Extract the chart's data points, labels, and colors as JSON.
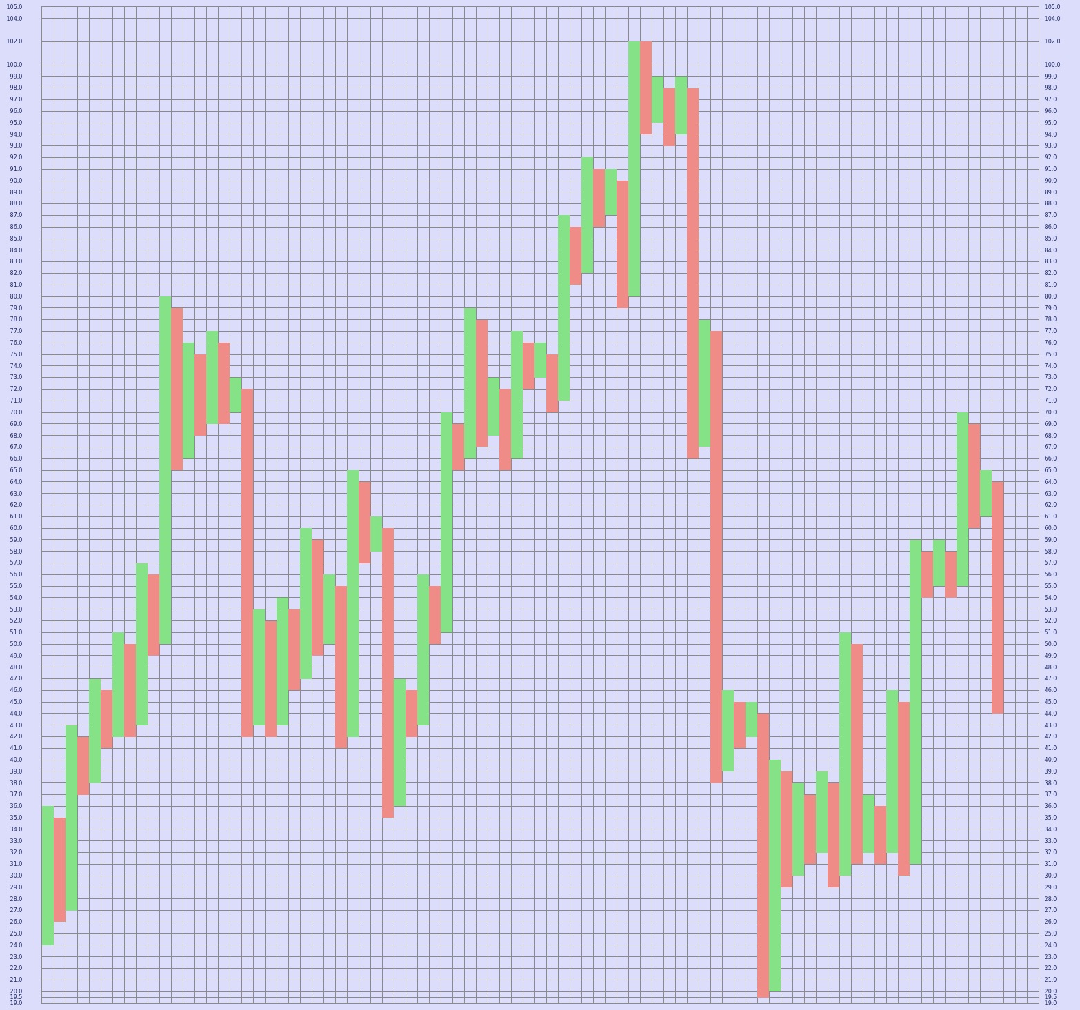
{
  "chart_data": {
    "type": "bar",
    "categories": [
      null,
      null,
      null,
      null,
      null,
      null,
      null,
      null,
      null,
      null,
      null,
      null,
      null,
      null,
      null,
      null,
      null,
      null,
      null,
      null,
      null,
      null,
      null,
      null,
      null,
      null,
      null,
      null,
      null,
      null,
      null,
      null,
      null,
      null,
      null,
      null,
      null,
      null,
      null,
      null,
      null,
      null,
      null,
      null,
      null,
      null,
      null,
      null,
      null,
      null,
      null,
      null,
      null,
      null,
      null,
      null,
      null,
      null,
      null,
      null,
      null,
      null,
      null,
      null,
      null,
      null,
      null,
      null,
      null,
      null,
      null,
      null,
      null,
      null,
      null,
      null,
      null,
      null,
      null,
      null,
      null,
      null,
      null,
      null,
      null
    ],
    "values": [
      12,
      9,
      16,
      5,
      9,
      5,
      9,
      8,
      14,
      7,
      30,
      14,
      10,
      7,
      8,
      7,
      3,
      30,
      10,
      10,
      11,
      7,
      13,
      10,
      6,
      14,
      23,
      7,
      3,
      25,
      11,
      4,
      13,
      5,
      19,
      4,
      13,
      11,
      5,
      7,
      11,
      4,
      3,
      5,
      16,
      5,
      10,
      5,
      4,
      11,
      22,
      8,
      4,
      5,
      5,
      32,
      11,
      39,
      7,
      4,
      3,
      24.5,
      20,
      10,
      8,
      6,
      7,
      9,
      21,
      19,
      5,
      5,
      14,
      15,
      28,
      4,
      4,
      4,
      15,
      9,
      4,
      20,
      null,
      null,
      null
    ],
    "base": [
      24,
      26,
      27,
      37,
      38,
      41,
      42,
      42,
      43,
      49,
      50,
      65,
      66,
      68,
      69,
      69,
      70,
      42,
      43,
      42,
      43,
      46,
      47,
      49,
      50,
      41,
      42,
      57,
      58,
      35,
      36,
      42,
      43,
      50,
      51,
      65,
      66,
      67,
      68,
      65,
      66,
      72,
      73,
      70,
      71,
      81,
      82,
      86,
      87,
      79,
      80,
      94,
      95,
      93,
      94,
      66,
      67,
      38,
      39,
      41,
      42,
      19.5,
      20,
      29,
      30,
      31,
      32,
      29,
      30,
      31,
      32,
      31,
      32,
      30,
      31,
      54,
      55,
      54,
      55,
      60,
      61,
      44,
      null,
      null,
      null
    ],
    "colors": [
      "#86e286",
      "#f08c88",
      "#86e286",
      "#f08c88",
      "#86e286",
      "#f08c88",
      "#86e286",
      "#f08c88",
      "#86e286",
      "#f08c88",
      "#86e286",
      "#f08c88",
      "#86e286",
      "#f08c88",
      "#86e286",
      "#f08c88",
      "#86e286",
      "#f08c88",
      "#86e286",
      "#f08c88",
      "#86e286",
      "#f08c88",
      "#86e286",
      "#f08c88",
      "#86e286",
      "#f08c88",
      "#86e286",
      "#f08c88",
      "#86e286",
      "#f08c88",
      "#86e286",
      "#f08c88",
      "#86e286",
      "#f08c88",
      "#86e286",
      "#f08c88",
      "#86e286",
      "#f08c88",
      "#86e286",
      "#f08c88",
      "#86e286",
      "#f08c88",
      "#86e286",
      "#f08c88",
      "#86e286",
      "#f08c88",
      "#86e286",
      "#f08c88",
      "#86e286",
      "#f08c88",
      "#86e286",
      "#f08c88",
      "#86e286",
      "#f08c88",
      "#86e286",
      "#f08c88",
      "#86e286",
      "#f08c88",
      "#86e286",
      "#f08c88",
      "#86e286",
      "#f08c88",
      "#86e286",
      "#f08c88",
      "#86e286",
      "#f08c88",
      "#86e286",
      "#f08c88",
      "#86e286",
      "#f08c88",
      "#86e286",
      "#f08c88",
      "#86e286",
      "#f08c88",
      "#86e286",
      "#f08c88",
      "#86e286",
      "#f08c88",
      "#86e286",
      "#f08c88",
      "#86e286",
      "#f08c88",
      null,
      null,
      null
    ],
    "ylim": [
      19,
      105
    ],
    "yticks": [
      {
        "value": 19,
        "label": "19.0"
      },
      19.5,
      {
        "value": 20,
        "label": "20.0"
      },
      {
        "value": 21,
        "label": "21.0"
      },
      {
        "value": 22,
        "label": "22.0"
      },
      {
        "value": 23,
        "label": "23.0"
      },
      {
        "value": 24,
        "label": "24.0"
      },
      {
        "value": 25,
        "label": "25.0"
      },
      {
        "value": 26,
        "label": "26.0"
      },
      {
        "value": 27,
        "label": "27.0"
      },
      {
        "value": 28,
        "label": "28.0"
      },
      {
        "value": 29,
        "label": "29.0"
      },
      {
        "value": 30,
        "label": "30.0"
      },
      {
        "value": 31,
        "label": "31.0"
      },
      {
        "value": 32,
        "label": "32.0"
      },
      {
        "value": 33,
        "label": "33.0"
      },
      {
        "value": 34,
        "label": "34.0"
      },
      {
        "value": 35,
        "label": "35.0"
      },
      {
        "value": 36,
        "label": "36.0"
      },
      {
        "value": 37,
        "label": "37.0"
      },
      {
        "value": 38,
        "label": "38.0"
      },
      {
        "value": 39,
        "label": "39.0"
      },
      {
        "value": 40,
        "label": "40.0"
      },
      {
        "value": 41,
        "label": "41.0"
      },
      {
        "value": 42,
        "label": "42.0"
      },
      {
        "value": 43,
        "label": "43.0"
      },
      {
        "value": 44,
        "label": "44.0"
      },
      {
        "value": 45,
        "label": "45.0"
      },
      {
        "value": 46,
        "label": "46.0"
      },
      {
        "value": 47,
        "label": "47.0"
      },
      {
        "value": 48,
        "label": "48.0"
      },
      {
        "value": 49,
        "label": "49.0"
      },
      {
        "value": 50,
        "label": "50.0"
      },
      {
        "value": 51,
        "label": "51.0"
      },
      {
        "value": 52,
        "label": "52.0"
      },
      {
        "value": 53,
        "label": "53.0"
      },
      {
        "value": 54,
        "label": "54.0"
      },
      {
        "value": 55,
        "label": "55.0"
      },
      {
        "value": 56,
        "label": "56.0"
      },
      {
        "value": 57,
        "label": "57.0"
      },
      {
        "value": 58,
        "label": "58.0"
      },
      {
        "value": 59,
        "label": "59.0"
      },
      {
        "value": 60,
        "label": "60.0"
      },
      {
        "value": 61,
        "label": "61.0"
      },
      {
        "value": 62,
        "label": "62.0"
      },
      {
        "value": 63,
        "label": "63.0"
      },
      {
        "value": 64,
        "label": "64.0"
      },
      {
        "value": 65,
        "label": "65.0"
      },
      {
        "value": 66,
        "label": "66.0"
      },
      {
        "value": 67,
        "label": "67.0"
      },
      {
        "value": 68,
        "label": "68.0"
      },
      {
        "value": 69,
        "label": "69.0"
      },
      {
        "value": 70,
        "label": "70.0"
      },
      {
        "value": 71,
        "label": "71.0"
      },
      {
        "value": 72,
        "label": "72.0"
      },
      {
        "value": 73,
        "label": "73.0"
      },
      {
        "value": 74,
        "label": "74.0"
      },
      {
        "value": 75,
        "label": "75.0"
      },
      {
        "value": 76,
        "label": "76.0"
      },
      {
        "value": 77,
        "label": "77.0"
      },
      {
        "value": 78,
        "label": "78.0"
      },
      {
        "value": 79,
        "label": "79.0"
      },
      {
        "value": 80,
        "label": "80.0"
      },
      {
        "value": 81,
        "label": "81.0"
      },
      {
        "value": 82,
        "label": "82.0"
      },
      {
        "value": 83,
        "label": "83.0"
      },
      {
        "value": 84,
        "label": "84.0"
      },
      {
        "value": 85,
        "label": "85.0"
      },
      {
        "value": 86,
        "label": "86.0"
      },
      {
        "value": 87,
        "label": "87.0"
      },
      {
        "value": 88,
        "label": "88.0"
      },
      {
        "value": 89,
        "label": "89.0"
      },
      {
        "value": 90,
        "label": "90.0"
      },
      {
        "value": 91,
        "label": "91.0"
      },
      {
        "value": 92,
        "label": "92.0"
      },
      {
        "value": 93,
        "label": "93.0"
      },
      {
        "value": 94,
        "label": "94.0"
      },
      {
        "value": 95,
        "label": "95.0"
      },
      {
        "value": 96,
        "label": "96.0"
      },
      {
        "value": 97,
        "label": "97.0"
      },
      {
        "value": 98,
        "label": "98.0"
      },
      {
        "value": 99,
        "label": "99.0"
      },
      {
        "value": 100,
        "label": "100.0"
      },
      {
        "value": 102,
        "label": "102.0"
      },
      {
        "value": 104,
        "label": "104.0"
      },
      {
        "value": 105,
        "label": "105.0"
      }
    ],
    "y2lim": [
      19,
      105
    ],
    "y2ticks": [
      {
        "value": 19,
        "label": "19.0"
      },
      19.5,
      {
        "value": 20,
        "label": "20.0"
      },
      {
        "value": 21,
        "label": "21.0"
      },
      {
        "value": 22,
        "label": "22.0"
      },
      {
        "value": 23,
        "label": "23.0"
      },
      {
        "value": 24,
        "label": "24.0"
      },
      {
        "value": 25,
        "label": "25.0"
      },
      {
        "value": 26,
        "label": "26.0"
      },
      {
        "value": 27,
        "label": "27.0"
      },
      {
        "value": 28,
        "label": "28.0"
      },
      {
        "value": 29,
        "label": "29.0"
      },
      {
        "value": 30,
        "label": "30.0"
      },
      {
        "value": 31,
        "label": "31.0"
      },
      {
        "value": 32,
        "label": "32.0"
      },
      {
        "value": 33,
        "label": "33.0"
      },
      {
        "value": 34,
        "label": "34.0"
      },
      {
        "value": 35,
        "label": "35.0"
      },
      {
        "value": 36,
        "label": "36.0"
      },
      {
        "value": 37,
        "label": "37.0"
      },
      {
        "value": 38,
        "label": "38.0"
      },
      {
        "value": 39,
        "label": "39.0"
      },
      {
        "value": 40,
        "label": "40.0"
      },
      {
        "value": 41,
        "label": "41.0"
      },
      {
        "value": 42,
        "label": "42.0"
      },
      {
        "value": 43,
        "label": "43.0"
      },
      {
        "value": 44,
        "label": "44.0"
      },
      {
        "value": 45,
        "label": "45.0"
      },
      {
        "value": 46,
        "label": "46.0"
      },
      {
        "value": 47,
        "label": "47.0"
      },
      {
        "value": 48,
        "label": "48.0"
      },
      {
        "value": 49,
        "label": "49.0"
      },
      {
        "value": 50,
        "label": "50.0"
      },
      {
        "value": 51,
        "label": "51.0"
      },
      {
        "value": 52,
        "label": "52.0"
      },
      {
        "value": 53,
        "label": "53.0"
      },
      {
        "value": 54,
        "label": "54.0"
      },
      {
        "value": 55,
        "label": "55.0"
      },
      {
        "value": 56,
        "label": "56.0"
      },
      {
        "value": 57,
        "label": "57.0"
      },
      {
        "value": 58,
        "label": "58.0"
      },
      {
        "value": 59,
        "label": "59.0"
      },
      {
        "value": 60,
        "label": "60.0"
      },
      {
        "value": 61,
        "label": "61.0"
      },
      {
        "value": 62,
        "label": "62.0"
      },
      {
        "value": 63,
        "label": "63.0"
      },
      {
        "value": 64,
        "label": "64.0"
      },
      {
        "value": 65,
        "label": "65.0"
      },
      {
        "value": 66,
        "label": "66.0"
      },
      {
        "value": 67,
        "label": "67.0"
      },
      {
        "value": 68,
        "label": "68.0"
      },
      {
        "value": 69,
        "label": "69.0"
      },
      {
        "value": 70,
        "label": "70.0"
      },
      {
        "value": 71,
        "label": "71.0"
      },
      {
        "value": 72,
        "label": "72.0"
      },
      {
        "value": 73,
        "label": "73.0"
      },
      {
        "value": 74,
        "label": "74.0"
      },
      {
        "value": 75,
        "label": "75.0"
      },
      {
        "value": 76,
        "label": "76.0"
      },
      {
        "value": 77,
        "label": "77.0"
      },
      {
        "value": 78,
        "label": "78.0"
      },
      {
        "value": 79,
        "label": "79.0"
      },
      {
        "value": 80,
        "label": "80.0"
      },
      {
        "value": 81,
        "label": "81.0"
      },
      {
        "value": 82,
        "label": "82.0"
      },
      {
        "value": 83,
        "label": "83.0"
      },
      {
        "value": 84,
        "label": "84.0"
      },
      {
        "value": 85,
        "label": "85.0"
      },
      {
        "value": 86,
        "label": "86.0"
      },
      {
        "value": 87,
        "label": "87.0"
      },
      {
        "value": 88,
        "label": "88.0"
      },
      {
        "value": 89,
        "label": "89.0"
      },
      {
        "value": 90,
        "label": "90.0"
      },
      {
        "value": 91,
        "label": "91.0"
      },
      {
        "value": 92,
        "label": "92.0"
      },
      {
        "value": 93,
        "label": "93.0"
      },
      {
        "value": 94,
        "label": "94.0"
      },
      {
        "value": 95,
        "label": "95.0"
      },
      {
        "value": 96,
        "label": "96.0"
      },
      {
        "value": 97,
        "label": "97.0"
      },
      {
        "value": 98,
        "label": "98.0"
      },
      {
        "value": 99,
        "label": "99.0"
      },
      {
        "value": 100,
        "label": "100.0"
      },
      {
        "value": 102,
        "label": "102.0"
      },
      {
        "value": 104,
        "label": "104.0"
      },
      {
        "value": 105,
        "label": "105.0"
      }
    ],
    "grid": true
  }
}
